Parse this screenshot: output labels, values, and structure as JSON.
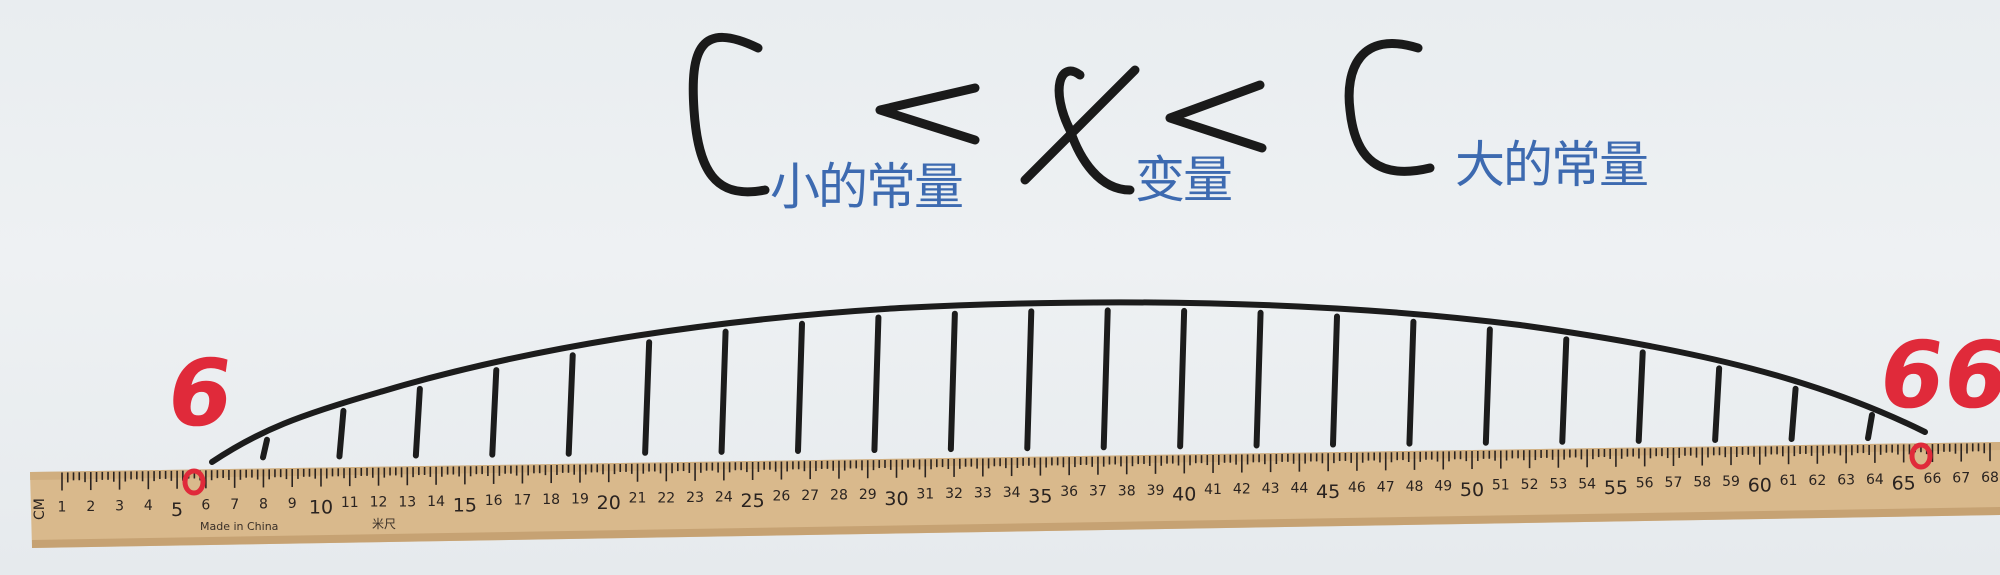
{
  "board": {
    "formula": {
      "left_constant": "C",
      "left_subscript": "小的常量",
      "left_relation": "<",
      "variable": "x",
      "variable_subscript": "变量",
      "right_relation": "<",
      "right_constant": "C",
      "right_subscript": "大的常量"
    },
    "endpoint_left": "6",
    "endpoint_right": "66"
  },
  "ruler": {
    "unit_label": "CM",
    "maker_text": "Made in China",
    "type_text": "米尺",
    "start_number": 1,
    "end_number": 68,
    "skipped_numbers": [],
    "colors": {
      "wood": "#d9b98c",
      "marking": "#2a2320"
    }
  },
  "curve": {
    "tick_count": 22,
    "color": "#1c1c1c"
  }
}
